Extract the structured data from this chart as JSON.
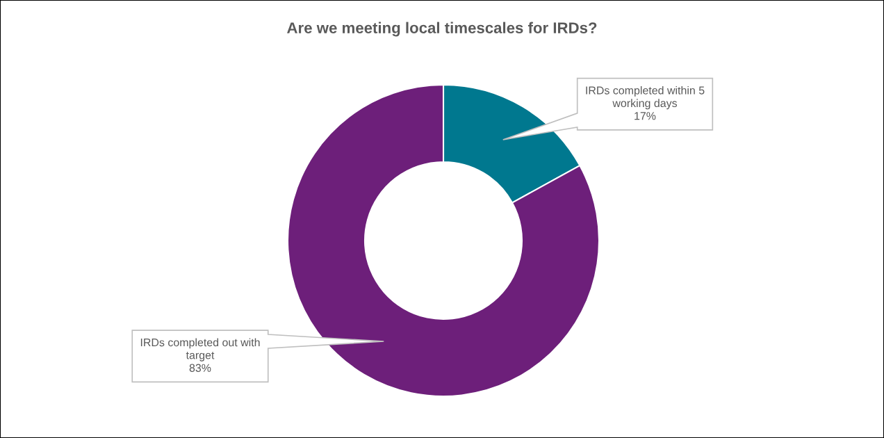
{
  "chart_data": {
    "type": "donut",
    "title": "Are we meeting local timescales for IRDs?",
    "categories": [
      "IRDs completed within 5\nworking days",
      "IRDs completed out with\ntarget"
    ],
    "values": [
      17,
      83
    ],
    "colors": [
      "#00788f",
      "#6d1f7a"
    ],
    "value_labels": [
      "17%",
      "83%"
    ]
  }
}
